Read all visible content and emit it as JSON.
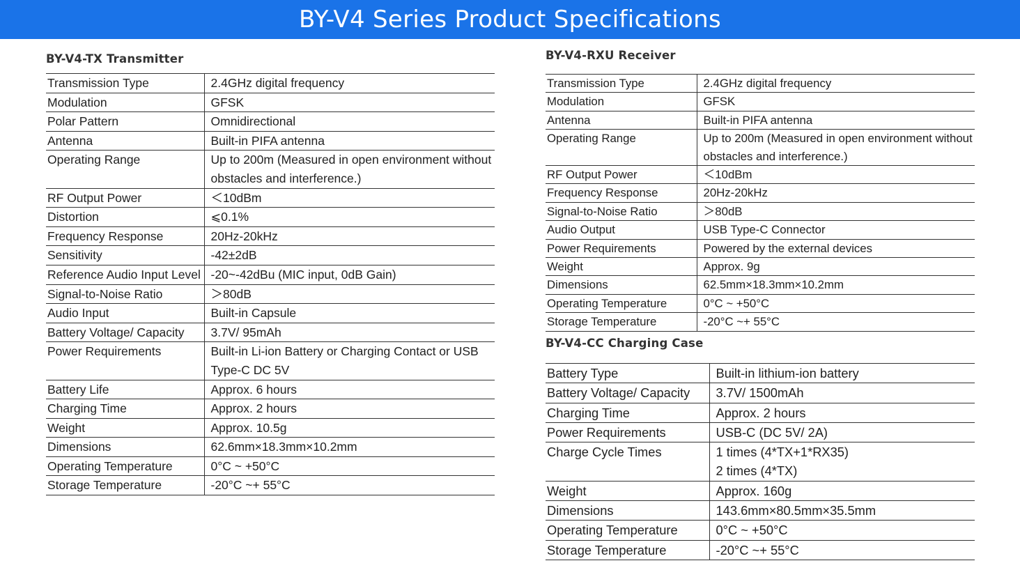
{
  "banner": {
    "title": "BY-V4 Series Product Specifications"
  },
  "tx": {
    "title": "BY-V4-TX Transmitter",
    "rows": [
      {
        "k": "Transmission Type",
        "v": [
          "2.4GHz digital frequency"
        ]
      },
      {
        "k": "Modulation",
        "v": [
          "GFSK"
        ]
      },
      {
        "k": "Polar Pattern",
        "v": [
          "Omnidirectional"
        ]
      },
      {
        "k": "Antenna",
        "v": [
          "Built-in PIFA antenna"
        ]
      },
      {
        "k": "Operating Range",
        "v": [
          "Up to 200m (Measured in open environment without",
          "obstacles and interference.)"
        ]
      },
      {
        "k": "RF Output Power",
        "v": [
          "＜10dBm"
        ]
      },
      {
        "k": "Distortion",
        "v": [
          "⩽0.1%"
        ]
      },
      {
        "k": "Frequency Response",
        "v": [
          "20Hz-20kHz"
        ]
      },
      {
        "k": "Sensitivity",
        "v": [
          "-42±2dB"
        ]
      },
      {
        "k": "Reference Audio Input Level",
        "v": [
          "-20~-42dBu (MIC input, 0dB Gain)"
        ]
      },
      {
        "k": "Signal-to-Noise Ratio",
        "v": [
          "＞80dB"
        ]
      },
      {
        "k": "Audio Input",
        "v": [
          "Built-in Capsule"
        ]
      },
      {
        "k": "Battery Voltage/ Capacity",
        "v": [
          "3.7V/ 95mAh"
        ]
      },
      {
        "k": "Power Requirements",
        "v": [
          "Built-in Li-ion Battery or Charging Contact or USB",
          "Type-C DC 5V"
        ]
      },
      {
        "k": "Battery Life",
        "v": [
          "Approx. 6 hours"
        ]
      },
      {
        "k": "Charging Time",
        "v": [
          "Approx. 2 hours"
        ]
      },
      {
        "k": "Weight",
        "v": [
          "Approx. 10.5g"
        ]
      },
      {
        "k": "Dimensions",
        "v": [
          "62.6mm×18.3mm×10.2mm"
        ]
      },
      {
        "k": "Operating Temperature",
        "v": [
          "0°C ~ +50°C"
        ]
      },
      {
        "k": "Storage Temperature",
        "v": [
          "-20°C ~+ 55°C"
        ]
      }
    ]
  },
  "rx": {
    "title": "BY-V4-RXU Receiver",
    "rows": [
      {
        "k": "Transmission Type",
        "v": [
          "2.4GHz digital frequency"
        ]
      },
      {
        "k": "Modulation",
        "v": [
          "GFSK"
        ]
      },
      {
        "k": "Antenna",
        "v": [
          "Built-in PIFA antenna"
        ]
      },
      {
        "k": "Operating Range",
        "v": [
          "Up to 200m (Measured in open environment without",
          "obstacles and interference.)"
        ]
      },
      {
        "k": "RF Output Power",
        "v": [
          "＜10dBm"
        ]
      },
      {
        "k": "Frequency Response",
        "v": [
          "20Hz-20kHz"
        ]
      },
      {
        "k": "Signal-to-Noise Ratio",
        "v": [
          "＞80dB"
        ]
      },
      {
        "k": "Audio Output",
        "v": [
          "USB Type-C Connector"
        ]
      },
      {
        "k": "Power Requirements",
        "v": [
          "Powered by the external devices"
        ]
      },
      {
        "k": "Weight",
        "v": [
          "Approx. 9g"
        ]
      },
      {
        "k": "Dimensions",
        "v": [
          "62.5mm×18.3mm×10.2mm"
        ]
      },
      {
        "k": "Operating Temperature",
        "v": [
          "0°C ~ +50°C"
        ]
      },
      {
        "k": "Storage Temperature",
        "v": [
          "-20°C ~+ 55°C"
        ]
      }
    ]
  },
  "cc": {
    "title": "BY-V4-CC Charging Case",
    "rows": [
      {
        "k": "Battery Type",
        "v": [
          "Built-in lithium-ion battery"
        ]
      },
      {
        "k": "Battery Voltage/ Capacity",
        "v": [
          "3.7V/ 1500mAh"
        ]
      },
      {
        "k": "Charging Time",
        "v": [
          "Approx. 2 hours"
        ]
      },
      {
        "k": "Power Requirements",
        "v": [
          "USB-C (DC 5V/ 2A)"
        ]
      },
      {
        "k": "Charge Cycle Times",
        "v": [
          "1 times (4*TX+1*RX35)",
          "2 times (4*TX)"
        ]
      },
      {
        "k": "Weight",
        "v": [
          "Approx. 160g"
        ]
      },
      {
        "k": "Dimensions",
        "v": [
          "143.6mm×80.5mm×35.5mm"
        ]
      },
      {
        "k": "Operating Temperature",
        "v": [
          "0°C ~ +50°C"
        ]
      },
      {
        "k": "Storage Temperature",
        "v": [
          "-20°C ~+ 55°C"
        ]
      }
    ]
  }
}
